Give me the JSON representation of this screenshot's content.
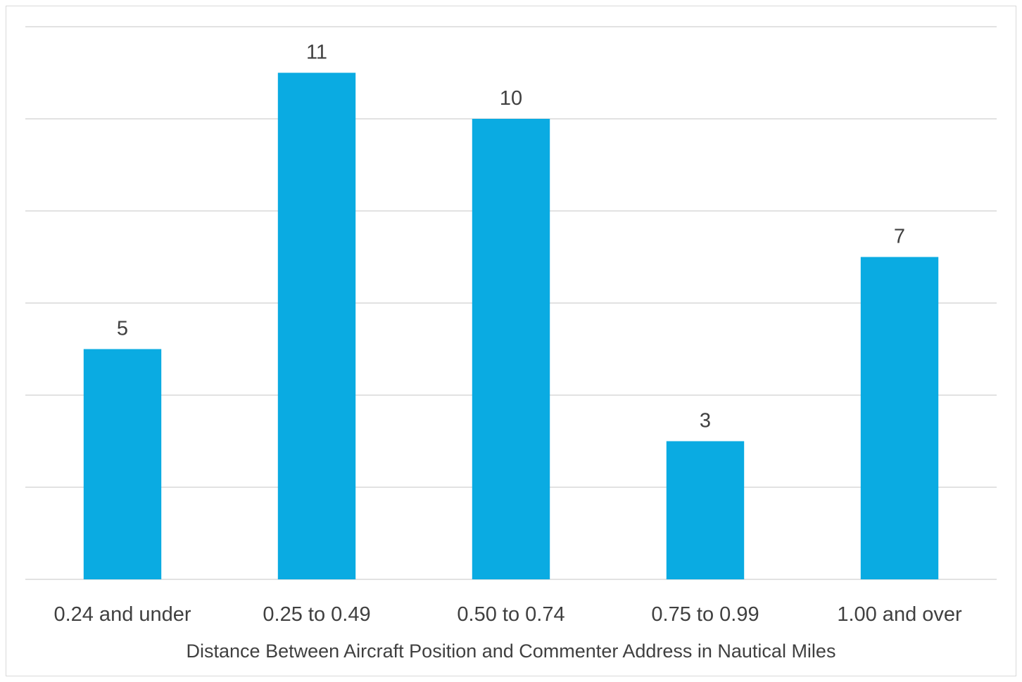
{
  "chart_data": {
    "type": "bar",
    "title": "",
    "xlabel": "Distance Between Aircraft Position and Commenter Address in Nautical Miles",
    "ylabel": "",
    "categories": [
      "0.24 and under",
      "0.25 to 0.49",
      "0.50 to 0.74",
      "0.75 to 0.99",
      "1.00 and over"
    ],
    "values": [
      5,
      11,
      10,
      3,
      7
    ],
    "data_labels": [
      "5",
      "11",
      "10",
      "3",
      "7"
    ],
    "ylim": [
      0,
      12
    ],
    "y_tick_step": 2,
    "y_tick_labels_shown": false,
    "grid": true,
    "legend": "none",
    "bar_color": "#0aabe2"
  }
}
